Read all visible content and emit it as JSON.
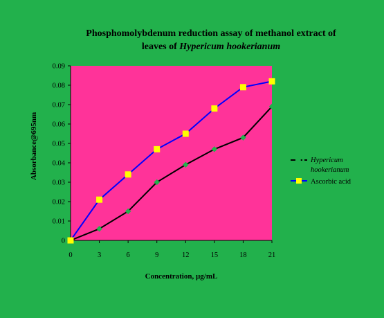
{
  "chart_data": {
    "type": "line",
    "title_line1": "Phosphomolybdenum reduction assay of methanol extract of",
    "title_line2_prefix": "leaves of ",
    "title_line2_italic": "Hypericum hookerianum",
    "xlabel": "Concentration, µg/mL",
    "ylabel": "Absorbance@695nm",
    "x": [
      0,
      3,
      6,
      9,
      12,
      15,
      18,
      21
    ],
    "xlim": [
      0,
      21
    ],
    "ylim": [
      0,
      0.09
    ],
    "yticks": [
      "0",
      "0.01",
      "0.02",
      "0.03",
      "0.04",
      "0.05",
      "0.06",
      "0.07",
      "0.08",
      "0.09"
    ],
    "xticks": [
      "0",
      "3",
      "6",
      "9",
      "12",
      "15",
      "18",
      "21"
    ],
    "legend_position": "right",
    "series": [
      {
        "name_line1": "Hypericum",
        "name_line2": "hookerianum",
        "values": [
          0,
          0.006,
          0.015,
          0.03,
          0.039,
          0.047,
          0.053,
          0.069
        ],
        "line_color": "#000000",
        "marker_color": "#22b14c",
        "marker": "diamond"
      },
      {
        "name": "Ascorbic acid",
        "values": [
          0,
          0.021,
          0.034,
          0.047,
          0.055,
          0.068,
          0.079,
          0.082
        ],
        "line_color": "#0000ff",
        "marker_color": "#ffff00",
        "marker": "square"
      }
    ],
    "plot_background": "#ff3399",
    "figure_background": "#22b14c"
  }
}
